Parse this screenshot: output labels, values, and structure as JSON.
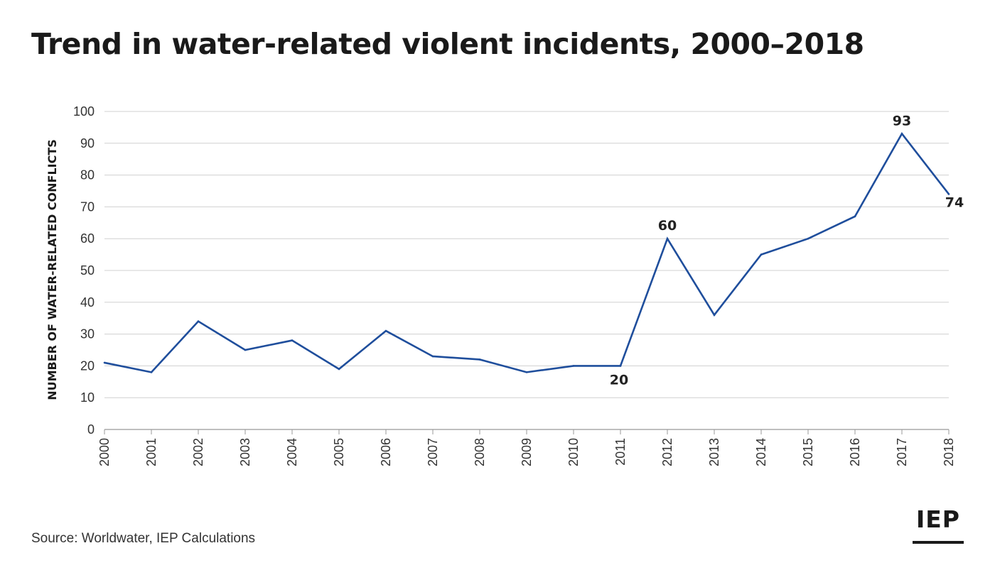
{
  "title": "Trend in water-related violent incidents, 2000–2018",
  "source": "Source: Worldwater, IEP Calculations",
  "logo": "IEP",
  "colors": {
    "line": "#1f4e9c",
    "grid": "#d0d0d0",
    "axis": "#999999",
    "text": "#1a1a1a"
  },
  "chart_data": {
    "type": "line",
    "title": "Trend in water-related violent incidents, 2000–2018",
    "xlabel": "",
    "ylabel": "NUMBER OF WATER-RELATED CONFLICTS",
    "x": [
      2000,
      2001,
      2002,
      2003,
      2004,
      2005,
      2006,
      2007,
      2008,
      2009,
      2010,
      2011,
      2012,
      2013,
      2014,
      2015,
      2016,
      2017,
      2018
    ],
    "series": [
      {
        "values": [
          21,
          18,
          34,
          25,
          28,
          19,
          31,
          23,
          22,
          18,
          20,
          20,
          60,
          36,
          55,
          60,
          67,
          93,
          74
        ]
      }
    ],
    "ylim": [
      0,
      100
    ],
    "yticks": [
      0,
      10,
      20,
      30,
      40,
      50,
      60,
      70,
      80,
      90,
      100
    ],
    "grid": true,
    "legend": "none",
    "annotations": [
      {
        "x": 2011,
        "label": "20",
        "pos": "below"
      },
      {
        "x": 2012,
        "label": "60",
        "pos": "above"
      },
      {
        "x": 2017,
        "label": "93",
        "pos": "above"
      },
      {
        "x": 2018,
        "label": "74",
        "pos": "below-right"
      }
    ]
  }
}
